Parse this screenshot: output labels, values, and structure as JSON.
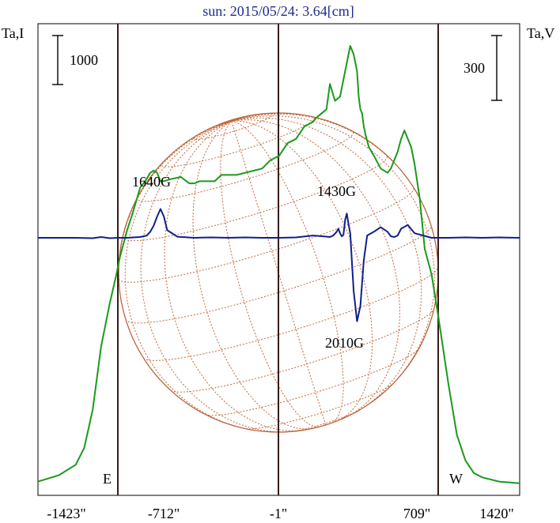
{
  "chart_data": {
    "type": "line",
    "title": "sun: 2015/05/24: 3.64[cm]",
    "left_axis_label": "Ta,I",
    "right_axis_label": "Ta,V",
    "left_scale_bar": "1000",
    "right_scale_bar": "300",
    "x_tick_labels": [
      "-1423\"",
      "-712\"",
      "-1\"",
      "709\"",
      "1420\""
    ],
    "x_range": [
      -1423,
      1420
    ],
    "limb_labels": {
      "east": "E",
      "west": "W"
    },
    "colors": {
      "intensity": "#1a9a1a",
      "polarization": "#10208c",
      "disk": "#b85a30",
      "vlines": "#3a1a1a",
      "title": "#1f2a8c"
    },
    "annotations": [
      {
        "text": "1640G",
        "x": -730,
        "level": 1.0
      },
      {
        "text": "1430G",
        "x": 380,
        "level": 1.0
      },
      {
        "text": "2010G",
        "x": 400,
        "level": -1.0
      }
    ],
    "series": [
      {
        "name": "Ta,I",
        "color": "#1a9a1a",
        "x": [
          -1423,
          -1300,
          -1200,
          -1150,
          -1100,
          -1050,
          -1000,
          -960,
          -940,
          -900,
          -860,
          -820,
          -790,
          -760,
          -740,
          -720,
          -700,
          -680,
          -640,
          -580,
          -530,
          -500,
          -470,
          -430,
          -380,
          -340,
          -300,
          -250,
          -200,
          -150,
          -100,
          -50,
          0,
          50,
          100,
          150,
          200,
          220,
          250,
          280,
          300,
          330,
          360,
          380,
          400,
          420,
          440,
          460,
          470,
          480,
          490,
          500,
          510,
          530,
          560,
          600,
          640,
          660,
          680,
          700,
          720,
          740,
          760,
          780,
          800,
          830,
          860,
          900,
          940,
          1000,
          1050,
          1100,
          1150,
          1200,
          1300,
          1420
        ],
        "values": [
          100,
          250,
          500,
          900,
          1800,
          3300,
          4300,
          5000,
          5400,
          6000,
          6500,
          7050,
          7200,
          7400,
          7450,
          7400,
          7200,
          7200,
          7250,
          7300,
          7150,
          7150,
          7200,
          7200,
          7200,
          7350,
          7350,
          7350,
          7400,
          7450,
          7500,
          7700,
          7800,
          8100,
          8200,
          8500,
          8600,
          8700,
          8800,
          8900,
          9500,
          9100,
          9200,
          9600,
          10000,
          10400,
          10200,
          9800,
          9200,
          8900,
          8800,
          8500,
          8300,
          8000,
          7800,
          7500,
          7400,
          7500,
          7700,
          7900,
          8200,
          8400,
          8200,
          8000,
          7600,
          6800,
          5600,
          5000,
          4000,
          2400,
          1200,
          600,
          300,
          200,
          100,
          60
        ]
      },
      {
        "name": "Ta,V",
        "color": "#10208c",
        "x": [
          -1423,
          -1200,
          -1100,
          -1050,
          -1000,
          -950,
          -900,
          -860,
          -820,
          -780,
          -760,
          -740,
          -720,
          -700,
          -680,
          -660,
          -600,
          -500,
          -400,
          -300,
          -200,
          -100,
          0,
          100,
          200,
          260,
          300,
          320,
          340,
          350,
          360,
          370,
          380,
          390,
          400,
          410,
          420,
          440,
          460,
          480,
          500,
          520,
          560,
          600,
          640,
          660,
          680,
          700,
          720,
          760,
          800,
          900,
          1000,
          1100,
          1200,
          1300,
          1420
        ],
        "values": [
          0,
          0,
          -5,
          10,
          -5,
          0,
          0,
          5,
          10,
          30,
          80,
          160,
          280,
          380,
          280,
          100,
          15,
          0,
          5,
          0,
          5,
          0,
          0,
          5,
          30,
          20,
          10,
          30,
          80,
          120,
          60,
          20,
          40,
          240,
          320,
          180,
          60,
          -700,
          -1100,
          -900,
          -300,
          30,
          80,
          140,
          80,
          20,
          10,
          30,
          120,
          170,
          60,
          0,
          0,
          5,
          0,
          5,
          0
        ]
      }
    ]
  }
}
